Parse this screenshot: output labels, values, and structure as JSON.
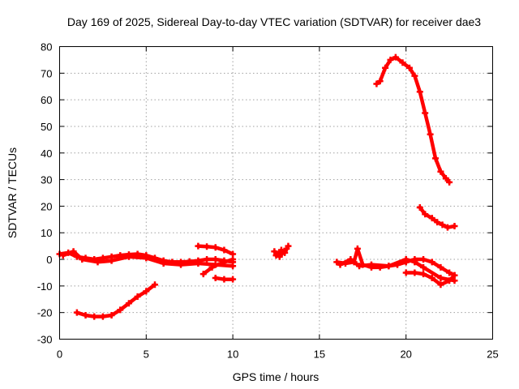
{
  "chart_data": {
    "type": "scatter",
    "title": "Day 169 of 2025, Sidereal Day-to-day VTEC variation (SDTVAR) for receiver dae3",
    "xlabel": "GPS time / hours",
    "ylabel": "SDTVAR / TECUs",
    "xlim": [
      0,
      25
    ],
    "ylim": [
      -30,
      80
    ],
    "xticks": [
      0,
      5,
      10,
      15,
      20,
      25
    ],
    "yticks": [
      -30,
      -20,
      -10,
      0,
      10,
      20,
      30,
      40,
      50,
      60,
      70,
      80
    ],
    "grid": true,
    "color": "#ff0000",
    "series": [
      {
        "name": "arc-1",
        "points": [
          [
            0,
            2
          ],
          [
            0.5,
            2.5
          ],
          [
            1,
            1
          ],
          [
            1.5,
            0.5
          ],
          [
            2,
            0
          ],
          [
            2.5,
            0.5
          ],
          [
            3,
            1
          ],
          [
            3.5,
            1.5
          ],
          [
            4,
            1.8
          ],
          [
            4.5,
            2
          ],
          [
            5,
            1.5
          ],
          [
            5.5,
            0.5
          ],
          [
            6,
            -0.5
          ],
          [
            6.5,
            -1
          ],
          [
            7,
            -1
          ],
          [
            7.5,
            -0.8
          ],
          [
            8,
            -0.5
          ],
          [
            8.5,
            0
          ],
          [
            9,
            0
          ],
          [
            9.5,
            -0.5
          ],
          [
            10,
            -1
          ]
        ]
      },
      {
        "name": "arc-2",
        "points": [
          [
            0.2,
            1.5
          ],
          [
            0.8,
            3
          ],
          [
            1.3,
            0
          ],
          [
            2.2,
            -1
          ],
          [
            3,
            -0.5
          ],
          [
            4,
            1
          ],
          [
            5,
            0.5
          ],
          [
            6,
            -1.5
          ],
          [
            7,
            -2
          ],
          [
            8,
            -1.5
          ],
          [
            9,
            -2
          ],
          [
            10,
            -2.5
          ]
        ]
      },
      {
        "name": "arc-3",
        "points": [
          [
            1,
            -20
          ],
          [
            1.5,
            -21
          ],
          [
            2,
            -21.5
          ],
          [
            2.5,
            -21.5
          ],
          [
            3,
            -21
          ],
          [
            3.5,
            -19
          ],
          [
            4,
            -16.5
          ],
          [
            4.5,
            -14
          ],
          [
            5,
            -12
          ],
          [
            5.5,
            -9.5
          ]
        ]
      },
      {
        "name": "arc-4",
        "points": [
          [
            8,
            5
          ],
          [
            8.5,
            4.8
          ],
          [
            9,
            4.5
          ],
          [
            9.5,
            3.5
          ],
          [
            10,
            2
          ]
        ]
      },
      {
        "name": "arc-5",
        "points": [
          [
            8.3,
            -5.5
          ],
          [
            8.8,
            -3
          ],
          [
            9.3,
            -1.5
          ],
          [
            10,
            0
          ]
        ]
      },
      {
        "name": "arc-6",
        "points": [
          [
            9,
            -7
          ],
          [
            9.5,
            -7.5
          ],
          [
            10,
            -7.5
          ]
        ]
      },
      {
        "name": "arc-7",
        "points": [
          [
            12.5,
            1.5
          ],
          [
            12.8,
            3.5
          ],
          [
            13,
            2.5
          ],
          [
            13.2,
            5
          ]
        ]
      },
      {
        "name": "arc-8",
        "points": [
          [
            12.4,
            3
          ],
          [
            12.7,
            1
          ],
          [
            13.1,
            4
          ]
        ]
      },
      {
        "name": "arc-9",
        "points": [
          [
            16,
            -1
          ],
          [
            16.5,
            -1.5
          ],
          [
            17,
            -1
          ],
          [
            17.2,
            4
          ],
          [
            17.5,
            -2
          ],
          [
            18,
            -3
          ],
          [
            18.5,
            -3
          ],
          [
            19,
            -2.5
          ],
          [
            19.5,
            -2
          ],
          [
            20,
            -1
          ],
          [
            20.5,
            0
          ],
          [
            21,
            0
          ],
          [
            21.5,
            -1
          ],
          [
            22,
            -3
          ],
          [
            22.5,
            -5
          ],
          [
            22.8,
            -6
          ]
        ]
      },
      {
        "name": "arc-10",
        "points": [
          [
            16.2,
            -2
          ],
          [
            16.8,
            0
          ],
          [
            17.3,
            -2.5
          ],
          [
            18,
            -2
          ],
          [
            19,
            -2.5
          ],
          [
            20,
            0
          ],
          [
            20.5,
            -1
          ],
          [
            21,
            -3
          ],
          [
            22,
            -7
          ],
          [
            22.8,
            -8
          ]
        ]
      },
      {
        "name": "arc-11",
        "points": [
          [
            20,
            -5
          ],
          [
            20.5,
            -5
          ],
          [
            21,
            -5.5
          ],
          [
            21.5,
            -7
          ],
          [
            22,
            -9.5
          ],
          [
            22.5,
            -8
          ],
          [
            22.8,
            -6
          ]
        ]
      },
      {
        "name": "arc-12",
        "points": [
          [
            18.3,
            66
          ],
          [
            18.5,
            67
          ],
          [
            18.8,
            72
          ],
          [
            19.1,
            75
          ],
          [
            19.4,
            76
          ],
          [
            19.8,
            74
          ],
          [
            20.2,
            72
          ],
          [
            20.5,
            69
          ],
          [
            20.8,
            63
          ],
          [
            21.1,
            55
          ],
          [
            21.4,
            47
          ],
          [
            21.7,
            38
          ],
          [
            22,
            33
          ],
          [
            22.3,
            30.5
          ],
          [
            22.5,
            29
          ]
        ]
      },
      {
        "name": "arc-13",
        "points": [
          [
            20.8,
            19.5
          ],
          [
            21.1,
            17
          ],
          [
            21.5,
            15.5
          ],
          [
            21.8,
            14
          ],
          [
            22.1,
            13
          ],
          [
            22.4,
            12
          ],
          [
            22.8,
            12.5
          ]
        ]
      }
    ]
  }
}
